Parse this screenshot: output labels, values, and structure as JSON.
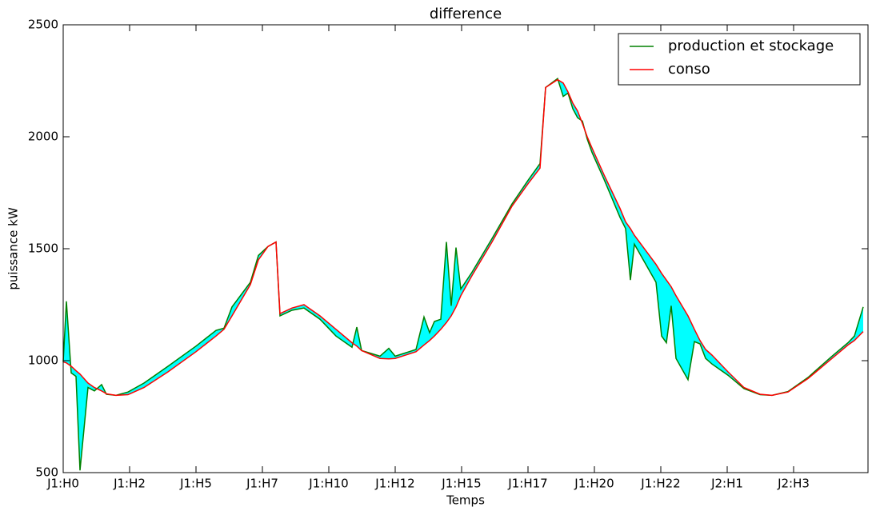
{
  "chart_data": {
    "type": "line",
    "title": "difference",
    "xlabel": "Temps",
    "ylabel": "puissance kW",
    "x": [
      0,
      4,
      10,
      16,
      21,
      31,
      39,
      48,
      54,
      66,
      81,
      101,
      131,
      166,
      191,
      201,
      211,
      234,
      244,
      256,
      266,
      271,
      286,
      301,
      321,
      341,
      361,
      367,
      373,
      396,
      407,
      415,
      441,
      451,
      458,
      464,
      472,
      479,
      485,
      491,
      497,
      511,
      536,
      561,
      581,
      596,
      603,
      618,
      625,
      631,
      637,
      643,
      649,
      655,
      661,
      676,
      696,
      703,
      709,
      714,
      741,
      748,
      754,
      760,
      766,
      781,
      789,
      796,
      803,
      811,
      831,
      851,
      871,
      886,
      906,
      931,
      961,
      981,
      989,
      1000
    ],
    "series": [
      {
        "name": "production et stockage",
        "color": "#008000",
        "values": [
          995,
          1265,
          945,
          930,
          510,
          880,
          865,
          893,
          850,
          845,
          860,
          900,
          975,
          1065,
          1135,
          1145,
          1240,
          1350,
          1470,
          1510,
          1530,
          1200,
          1225,
          1235,
          1185,
          1110,
          1060,
          1150,
          1045,
          1020,
          1055,
          1020,
          1050,
          1195,
          1125,
          1175,
          1185,
          1530,
          1245,
          1505,
          1320,
          1395,
          1545,
          1700,
          1805,
          1880,
          2220,
          2260,
          2180,
          2195,
          2125,
          2085,
          2070,
          1990,
          1930,
          1810,
          1640,
          1590,
          1360,
          1520,
          1350,
          1110,
          1080,
          1245,
          1010,
          915,
          1085,
          1075,
          1010,
          985,
          935,
          875,
          848,
          845,
          862,
          925,
          1020,
          1080,
          1110,
          1240
        ]
      },
      {
        "name": "conso",
        "color": "#ff0000",
        "values": [
          995,
          990,
          975,
          955,
          940,
          900,
          880,
          865,
          852,
          845,
          848,
          880,
          950,
          1040,
          1110,
          1140,
          1200,
          1340,
          1450,
          1510,
          1530,
          1210,
          1235,
          1250,
          1200,
          1140,
          1080,
          1065,
          1045,
          1010,
          1008,
          1010,
          1040,
          1070,
          1090,
          1110,
          1140,
          1170,
          1200,
          1240,
          1290,
          1380,
          1530,
          1690,
          1790,
          1860,
          2220,
          2255,
          2240,
          2200,
          2150,
          2115,
          2060,
          2000,
          1950,
          1830,
          1680,
          1620,
          1590,
          1560,
          1430,
          1390,
          1360,
          1330,
          1290,
          1200,
          1140,
          1090,
          1050,
          1025,
          950,
          880,
          850,
          845,
          860,
          920,
          1010,
          1070,
          1090,
          1130
        ]
      }
    ],
    "fill_color": "#00ffff",
    "xlim": [
      0,
      1006
    ],
    "xticks": [
      {
        "value": 0,
        "label": "J1:H0"
      },
      {
        "value": 83,
        "label": "J1:H2"
      },
      {
        "value": 166,
        "label": "J1:H5"
      },
      {
        "value": 249,
        "label": "J1:H7"
      },
      {
        "value": 332,
        "label": "J1:H10"
      },
      {
        "value": 415,
        "label": "J1:H12"
      },
      {
        "value": 498,
        "label": "J1:H15"
      },
      {
        "value": 581,
        "label": "J1:H17"
      },
      {
        "value": 664,
        "label": "J1:H20"
      },
      {
        "value": 747,
        "label": "J1:H22"
      },
      {
        "value": 830,
        "label": "J2:H1"
      },
      {
        "value": 913,
        "label": "J2:H3"
      }
    ],
    "ylim": [
      500,
      2500
    ],
    "yticks": [
      500,
      1000,
      1500,
      2000,
      2500
    ],
    "grid": false,
    "legend": "upper right"
  }
}
